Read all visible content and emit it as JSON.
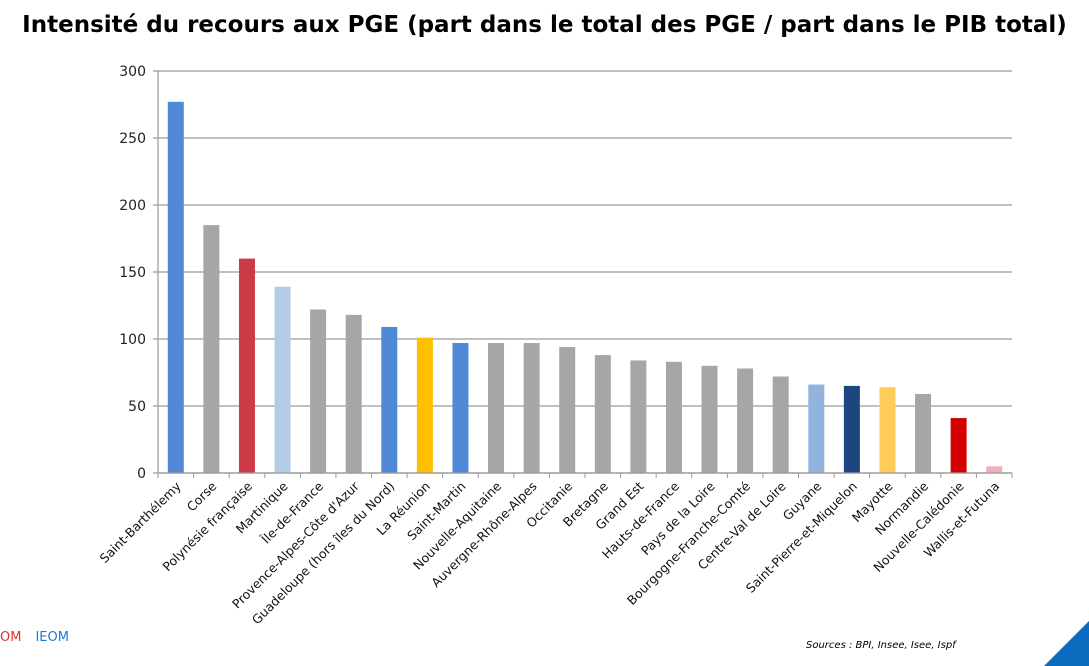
{
  "chart_data": {
    "type": "bar",
    "title": "Intensité du recours aux PGE (part dans le total des PGE / part dans le PIB total)",
    "xlabel": "",
    "ylabel": "",
    "ylim": [
      0,
      300
    ],
    "yticks": [
      0,
      50,
      100,
      150,
      200,
      250,
      300
    ],
    "grid": true,
    "categories": [
      "Saint-Barthélemy",
      "Corse",
      "Polynésie française",
      "Martinique",
      "Île-de-France",
      "Provence-Alpes-Côte d'Azur",
      "Guadeloupe (hors îles du Nord)",
      "La Réunion",
      "Saint-Martin",
      "Nouvelle-Aquitaine",
      "Auvergne-Rhône-Alpes",
      "Occitanie",
      "Bretagne",
      "Grand Est",
      "Hauts-de-France",
      "Pays de la Loire",
      "Bourgogne-Franche-Comté",
      "Centre-Val de Loire",
      "Guyane",
      "Saint-Pierre-et-Miquelon",
      "Mayotte",
      "Normandie",
      "Nouvelle-Calédonie",
      "Wallis-et-Futuna"
    ],
    "values": [
      277,
      185,
      160,
      139,
      122,
      118,
      109,
      101,
      97,
      97,
      97,
      94,
      88,
      84,
      83,
      80,
      78,
      72,
      66,
      65,
      64,
      59,
      41,
      5
    ],
    "colors": [
      "#4f89d8",
      "#a6a6a6",
      "#cc3b45",
      "#b4cbe6",
      "#a6a6a6",
      "#a6a6a6",
      "#4f89d8",
      "#ffc000",
      "#4f89d8",
      "#a6a6a6",
      "#a6a6a6",
      "#a6a6a6",
      "#a6a6a6",
      "#a6a6a6",
      "#a6a6a6",
      "#a6a6a6",
      "#a6a6a6",
      "#a6a6a6",
      "#91b3dc",
      "#1c467f",
      "#ffcc5a",
      "#a6a6a6",
      "#d40000",
      "#eab3b8"
    ]
  },
  "footer": {
    "sources": "Sources : BPI, Insee, Isee, Ispf",
    "logo_left": "OM",
    "logo_right": "IEOM"
  }
}
